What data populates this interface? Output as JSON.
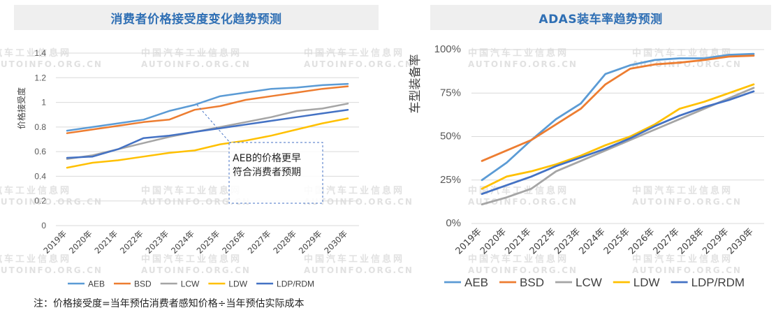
{
  "watermark": {
    "cn": "汽车工业信息网",
    "cn_full": "中国汽车工业信息网",
    "en": "AUTOINFO.ORG.CN"
  },
  "footnote": "注：价格接受度=当年预估消费者感知价格÷当年预估实际成本",
  "chart_data": [
    {
      "type": "line",
      "title": "消费者价格接受度变化趋势预测",
      "xlabel": "",
      "ylabel": "价格接受度",
      "ylim": [
        0,
        1.4
      ],
      "yticks": [
        "0",
        "0.2",
        "0.4",
        "0.6",
        "0.8",
        "1",
        "1.2",
        "1.4"
      ],
      "yticks_values": [
        0,
        0.2,
        0.4,
        0.6,
        0.8,
        1.0,
        1.2,
        1.4
      ],
      "categories": [
        "2019年",
        "2020年",
        "2021年",
        "2022年",
        "2023年",
        "2024年",
        "2025年",
        "2026年",
        "2027年",
        "2028年",
        "2029年",
        "2030年"
      ],
      "grid": true,
      "legend_position": "bottom",
      "annotation": "AEB的价格更早符合消费者预期",
      "annotation_lines": [
        "AEB的价格更早",
        "符合消费者预期"
      ],
      "series": [
        {
          "name": "AEB",
          "color": "#5b9bd5",
          "values": [
            0.77,
            0.8,
            0.83,
            0.86,
            0.93,
            0.98,
            1.05,
            1.08,
            1.11,
            1.12,
            1.14,
            1.15
          ]
        },
        {
          "name": "BSD",
          "color": "#ed7d31",
          "values": [
            0.75,
            0.78,
            0.81,
            0.84,
            0.86,
            0.94,
            0.97,
            1.02,
            1.05,
            1.08,
            1.11,
            1.13
          ]
        },
        {
          "name": "LCW",
          "color": "#a5a5a5",
          "values": [
            0.54,
            0.57,
            0.62,
            0.67,
            0.72,
            0.76,
            0.8,
            0.84,
            0.88,
            0.93,
            0.95,
            0.99
          ]
        },
        {
          "name": "LDW",
          "color": "#ffc000",
          "values": [
            0.47,
            0.51,
            0.53,
            0.56,
            0.59,
            0.61,
            0.66,
            0.69,
            0.73,
            0.78,
            0.83,
            0.87
          ]
        },
        {
          "name": "LDP/RDM",
          "color": "#4472c4",
          "values": [
            0.55,
            0.56,
            0.62,
            0.71,
            0.73,
            0.76,
            0.79,
            0.82,
            0.85,
            0.88,
            0.91,
            0.94
          ]
        }
      ]
    },
    {
      "type": "line",
      "title": "ADAS装车率趋势预测",
      "xlabel": "",
      "ylabel": "车型装备率",
      "ylim": [
        0,
        100
      ],
      "yticks": [
        "0%",
        "25%",
        "50%",
        "75%",
        "100%"
      ],
      "yticks_values": [
        0,
        25,
        50,
        75,
        100
      ],
      "categories": [
        "2019年",
        "2020年",
        "2021年",
        "2022年",
        "2023年",
        "2024年",
        "2025年",
        "2026年",
        "2027年",
        "2028年",
        "2029年",
        "2030年"
      ],
      "grid": true,
      "legend_position": "bottom",
      "series": [
        {
          "name": "AEB",
          "color": "#5b9bd5",
          "values": [
            25,
            35,
            48,
            60,
            69,
            86,
            91,
            94,
            95,
            95,
            97,
            97.5
          ]
        },
        {
          "name": "BSD",
          "color": "#ed7d31",
          "values": [
            36,
            42,
            48,
            57,
            66,
            80,
            89,
            91.5,
            92.5,
            94,
            96,
            96.5
          ]
        },
        {
          "name": "LCW",
          "color": "#a5a5a5",
          "values": [
            11,
            15,
            20,
            30,
            36,
            42,
            48,
            54,
            60,
            66,
            72,
            78
          ]
        },
        {
          "name": "LDW",
          "color": "#ffc000",
          "values": [
            20,
            27,
            30,
            34,
            39,
            45,
            50,
            57,
            66,
            70,
            75,
            80
          ]
        },
        {
          "name": "LDP/RDM",
          "color": "#4472c4",
          "values": [
            17,
            22,
            27,
            33,
            38,
            43,
            49,
            56,
            62,
            67,
            71,
            76
          ]
        }
      ]
    }
  ]
}
